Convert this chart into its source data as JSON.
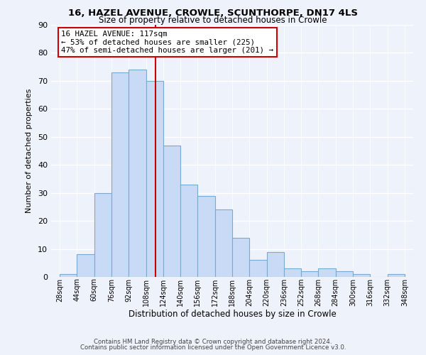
{
  "title_line1": "16, HAZEL AVENUE, CROWLE, SCUNTHORPE, DN17 4LS",
  "title_line2": "Size of property relative to detached houses in Crowle",
  "xlabel": "Distribution of detached houses by size in Crowle",
  "ylabel": "Number of detached properties",
  "footer_line1": "Contains HM Land Registry data © Crown copyright and database right 2024.",
  "footer_line2": "Contains public sector information licensed under the Open Government Licence v3.0.",
  "bin_labels": [
    "28sqm",
    "44sqm",
    "60sqm",
    "76sqm",
    "92sqm",
    "108sqm",
    "124sqm",
    "140sqm",
    "156sqm",
    "172sqm",
    "188sqm",
    "204sqm",
    "220sqm",
    "236sqm",
    "252sqm",
    "268sqm",
    "284sqm",
    "300sqm",
    "316sqm",
    "332sqm",
    "348sqm"
  ],
  "bar_values": [
    1,
    8,
    30,
    73,
    74,
    70,
    47,
    33,
    29,
    24,
    14,
    6,
    9,
    3,
    2,
    3,
    2,
    1,
    0,
    1
  ],
  "bar_color": "#c8daf5",
  "bar_edge_color": "#7aaad0",
  "ylim": [
    0,
    90
  ],
  "yticks": [
    0,
    10,
    20,
    30,
    40,
    50,
    60,
    70,
    80,
    90
  ],
  "vline_x": 117,
  "vline_color": "#cc0000",
  "annotation_title": "16 HAZEL AVENUE: 117sqm",
  "annotation_line1": "← 53% of detached houses are smaller (225)",
  "annotation_line2": "47% of semi-detached houses are larger (201) →",
  "annotation_box_color": "#ffffff",
  "annotation_box_edge": "#cc0000",
  "bg_color": "#eef2fa"
}
